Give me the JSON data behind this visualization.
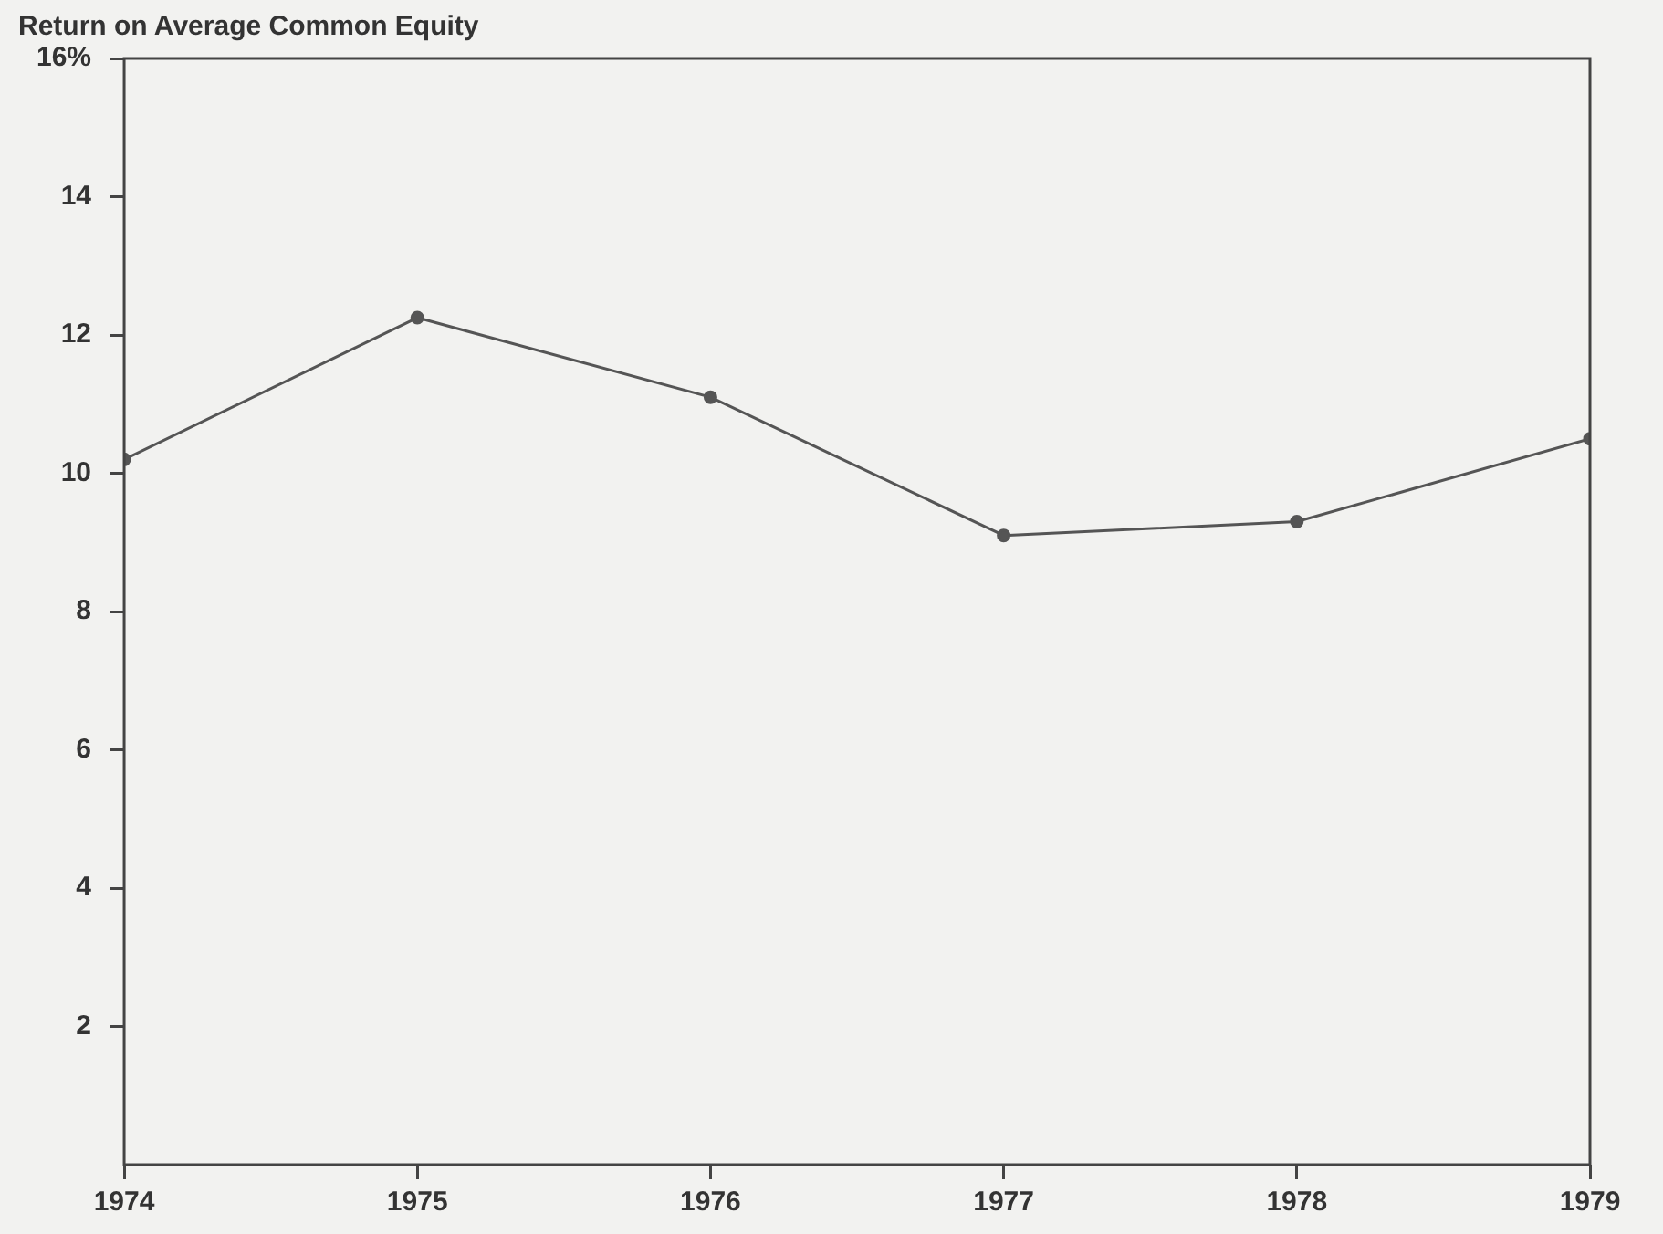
{
  "chart_data": {
    "type": "line",
    "title": "Return on Average Common Equity",
    "x": [
      1974,
      1975,
      1976,
      1977,
      1978,
      1979
    ],
    "series": [
      {
        "color": "#555555",
        "values": [
          10.2,
          12.25,
          11.1,
          9.1,
          9.3,
          10.5
        ]
      }
    ],
    "xlim": [
      1974,
      1979
    ],
    "xticks": [
      1974,
      1975,
      1976,
      1977,
      1978,
      1979
    ],
    "ylim": [
      0,
      16
    ],
    "yticks": [
      {
        "value": 2,
        "label": "2"
      },
      {
        "value": 4,
        "label": "4"
      },
      {
        "value": 6,
        "label": "6"
      },
      {
        "value": 8,
        "label": "8"
      },
      {
        "value": 10,
        "label": "10"
      },
      {
        "value": 12,
        "label": "12"
      },
      {
        "value": 14,
        "label": "14"
      },
      {
        "value": 16,
        "label": "16%"
      }
    ],
    "marker": "circle",
    "line_style": "solid",
    "legend": false
  }
}
